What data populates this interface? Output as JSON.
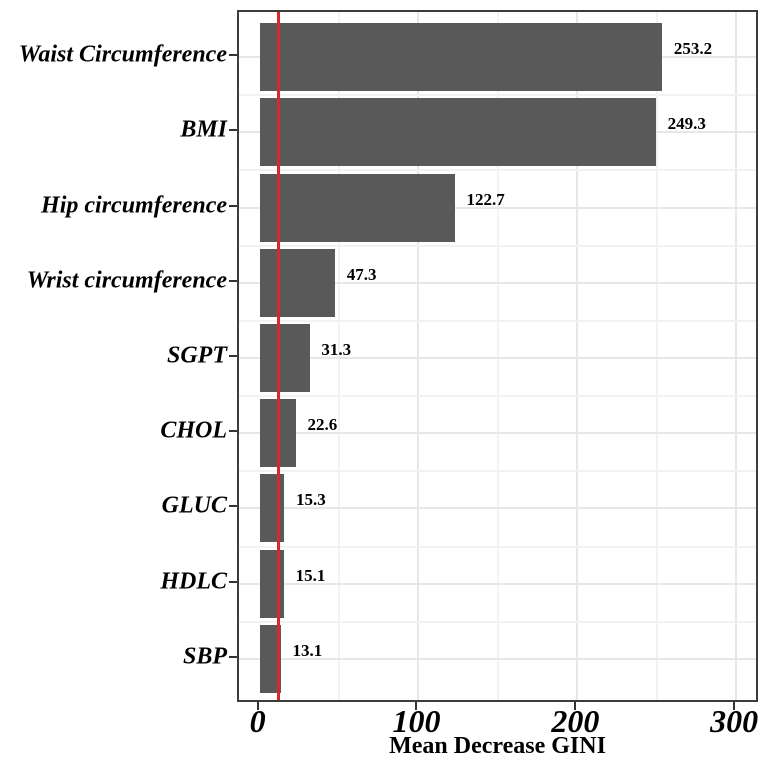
{
  "chart_data": {
    "type": "bar",
    "orientation": "horizontal",
    "title": "",
    "xlabel": "Mean Decrease GINI",
    "ylabel": "",
    "categories": [
      "Waist Circumference",
      "BMI",
      "Hip circumference",
      "Wrist circumference",
      "SGPT",
      "CHOL",
      "GLUC",
      "HDLC",
      "SBP"
    ],
    "values": [
      253.2,
      249.3,
      122.7,
      47.3,
      31.3,
      22.6,
      15.3,
      15.1,
      13.1
    ],
    "value_labels": [
      "253.2",
      "249.3",
      "122.7",
      "47.3",
      "31.3",
      "22.6",
      "15.3",
      "15.1",
      "13.1"
    ],
    "x_ticks": [
      0,
      100,
      200,
      300
    ],
    "x_tick_labels": [
      "0",
      "100",
      "200",
      "300"
    ],
    "x_major_gridlines": [
      100,
      200,
      300
    ],
    "x_minor_gridlines": [
      50,
      150,
      250
    ],
    "xlim": [
      -13,
      315
    ],
    "grid": true,
    "legend": "none",
    "reference_line": {
      "value": 12,
      "color": "#d42a2a"
    },
    "style": {
      "bar_color": "#595959",
      "panel_border": "#3c3c3c",
      "grid_major": "#e7e7e7",
      "grid_minor": "#f2f2f2",
      "tick_color": "#333333",
      "text_color": "#000000",
      "background": "#ffffff"
    }
  }
}
